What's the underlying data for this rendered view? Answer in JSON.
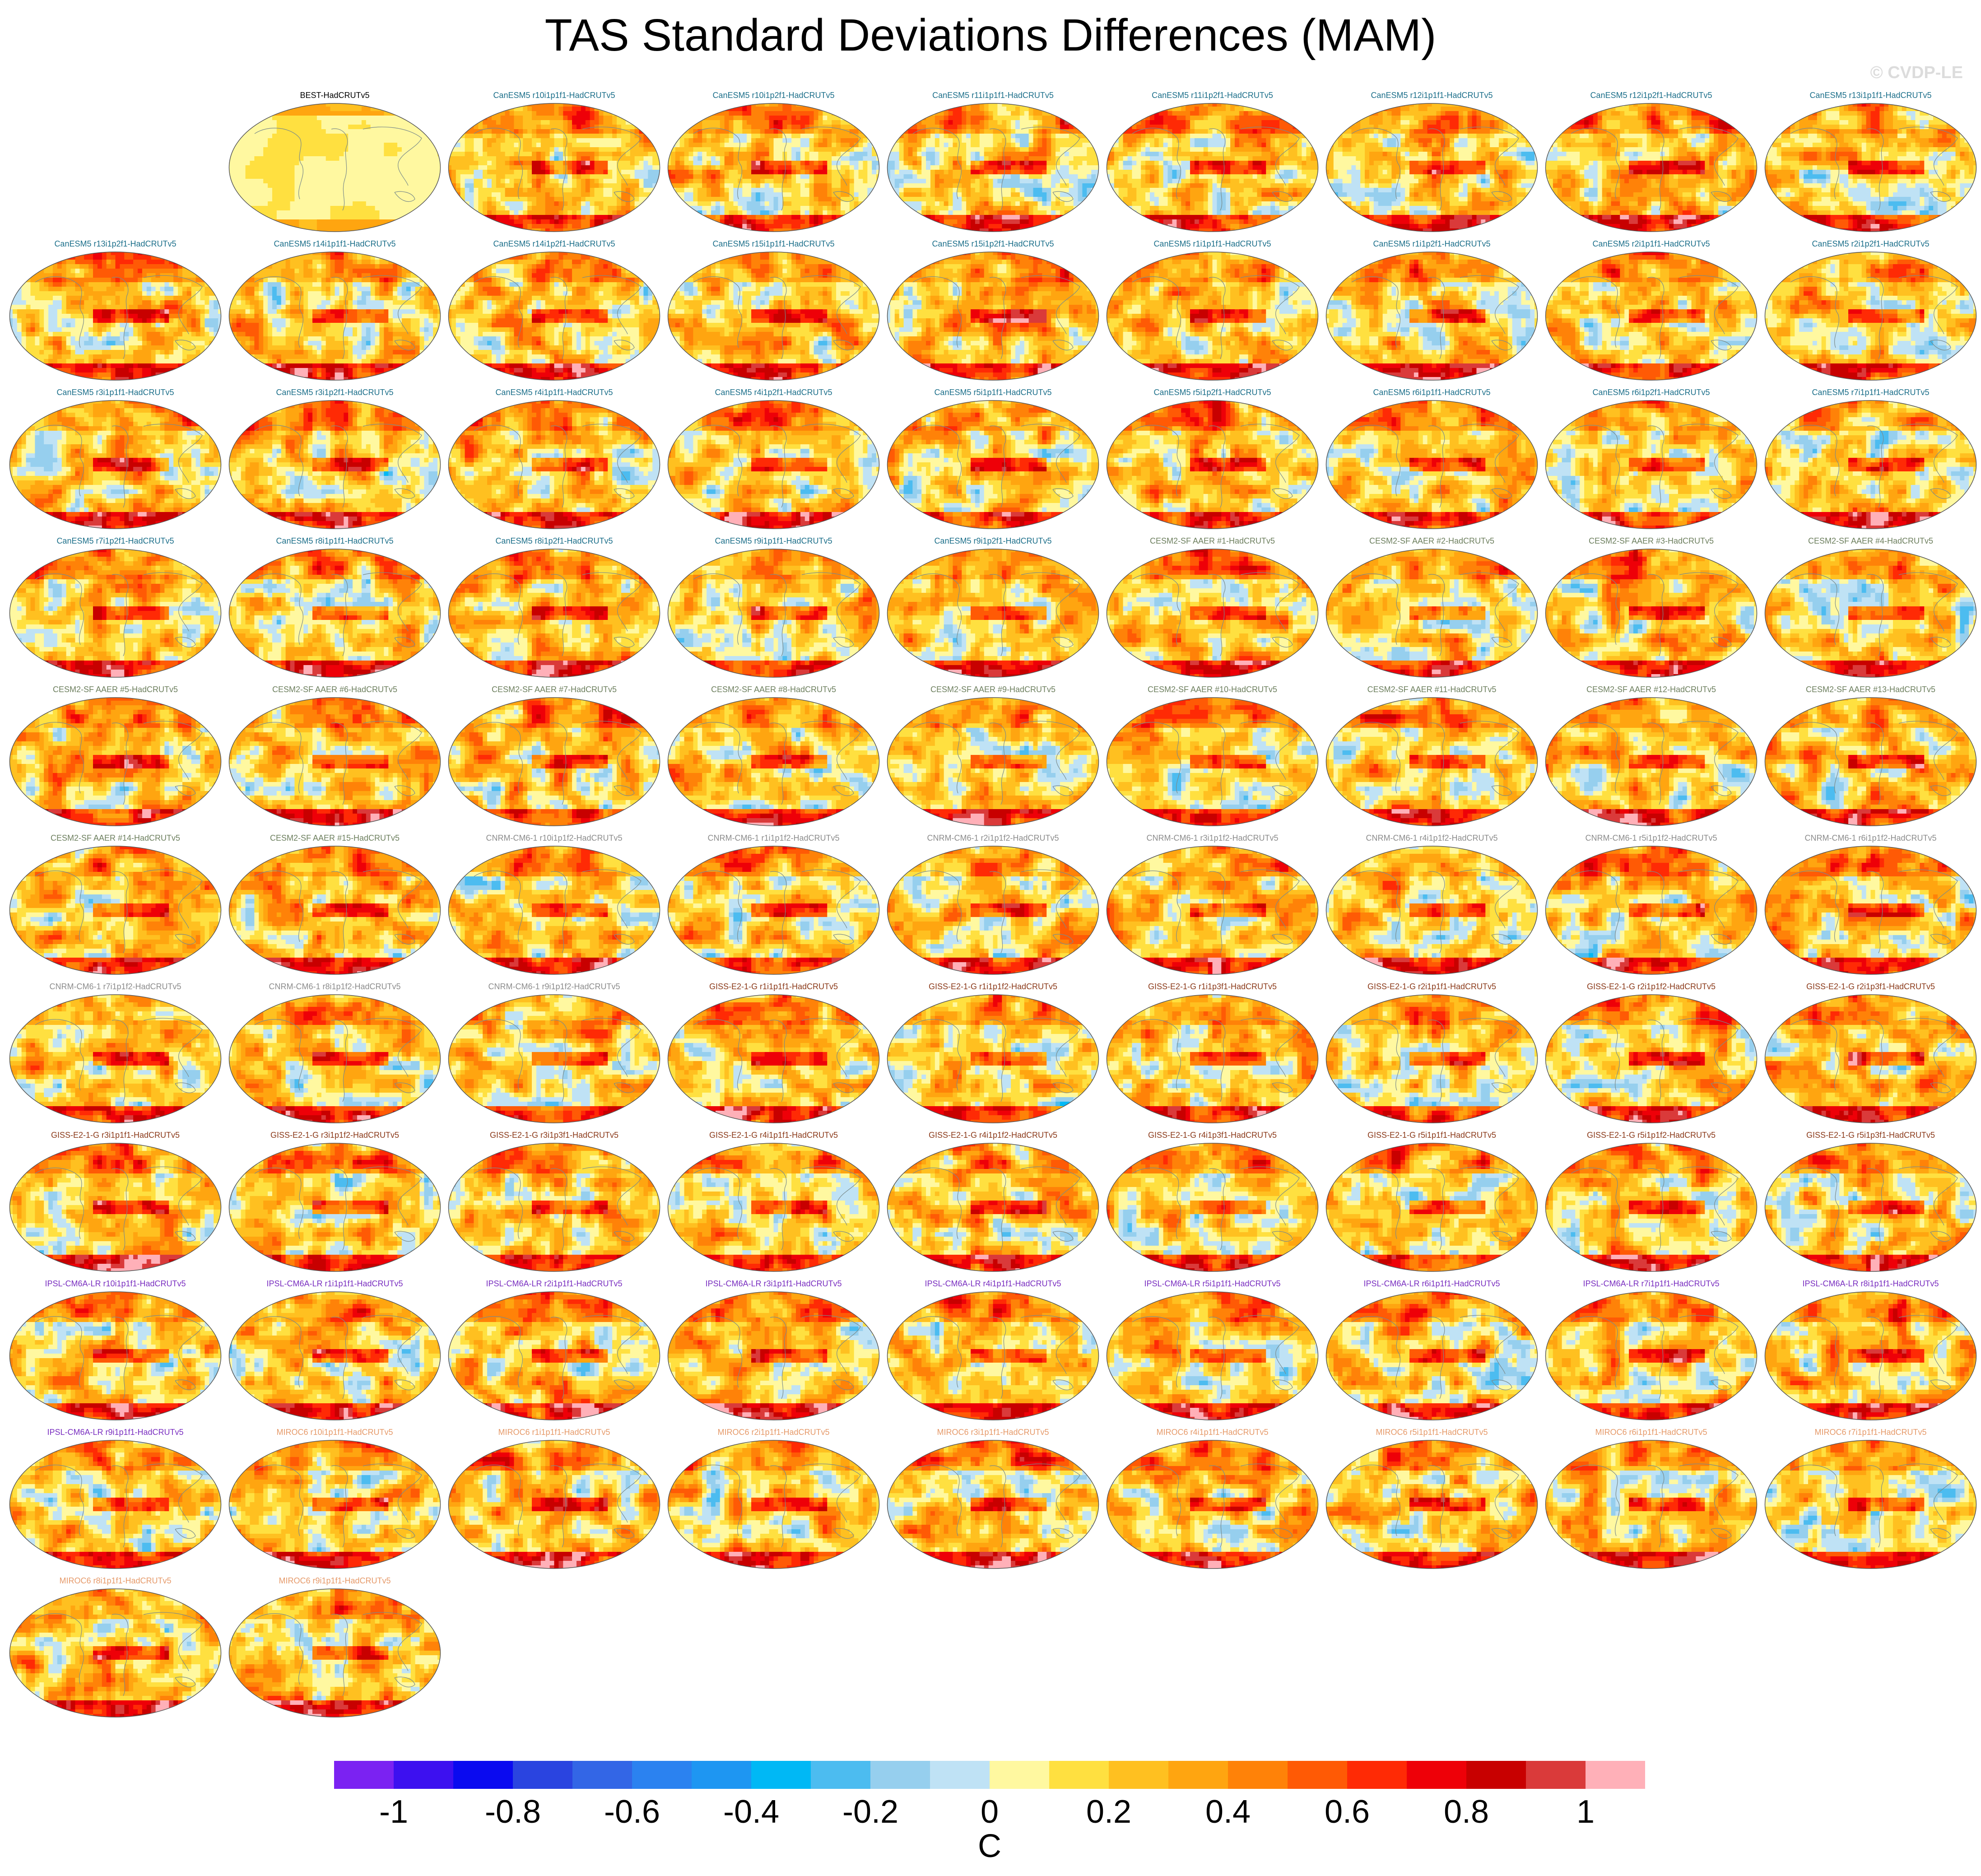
{
  "watermark": "© CVDP-LE",
  "chart_data": {
    "type": "heatmap",
    "title": "TAS Standard Deviations Differences (MAM)",
    "projection": "robinson",
    "units": "C",
    "colorbar": {
      "tick_labels": [
        "-1",
        "-0.8",
        "-0.6",
        "-0.4",
        "-0.2",
        "0",
        "0.2",
        "0.4",
        "0.6",
        "0.8",
        "1"
      ],
      "tick_values": [
        -1,
        -0.8,
        -0.6,
        -0.4,
        -0.2,
        0,
        0.2,
        0.4,
        0.6,
        0.8,
        1
      ],
      "levels": [
        -1.1,
        -1.0,
        -0.9,
        -0.8,
        -0.7,
        -0.6,
        -0.5,
        -0.4,
        -0.3,
        -0.2,
        -0.1,
        0,
        0.1,
        0.2,
        0.3,
        0.4,
        0.5,
        0.6,
        0.7,
        0.8,
        0.9,
        1.0,
        1.1
      ],
      "colors": [
        "#7b22f2",
        "#3d10f0",
        "#0a0af0",
        "#2a44e0",
        "#3366e6",
        "#2b82f0",
        "#1e96f2",
        "#00b8f5",
        "#4cbcf0",
        "#96cfee",
        "#bfe2f5",
        "#fff8a0",
        "#ffe040",
        "#ffc020",
        "#ffa510",
        "#ff8208",
        "#ff5a05",
        "#ff2a05",
        "#ee0008",
        "#c80000",
        "#da3a3a",
        "#ffb0b8"
      ]
    },
    "panel_colors": {
      "obs": "#000000",
      "CanESM5": "#1c6f8a",
      "CESM2-SF AAER": "#6d7f5e",
      "CNRM-CM6-1": "#8c8c8c",
      "GISS-E2-1-G": "#8b3a1a",
      "IPSL-CM6A-LR": "#7a2fc0",
      "MIROC6": "#e69a6a"
    },
    "panels": [
      {
        "title": "BEST-HadCRUTv5",
        "group": "obs"
      },
      {
        "title": "CanESM5 r10i1p1f1-HadCRUTv5",
        "group": "CanESM5"
      },
      {
        "title": "CanESM5 r10i1p2f1-HadCRUTv5",
        "group": "CanESM5"
      },
      {
        "title": "CanESM5 r11i1p1f1-HadCRUTv5",
        "group": "CanESM5"
      },
      {
        "title": "CanESM5 r11i1p2f1-HadCRUTv5",
        "group": "CanESM5"
      },
      {
        "title": "CanESM5 r12i1p1f1-HadCRUTv5",
        "group": "CanESM5"
      },
      {
        "title": "CanESM5 r12i1p2f1-HadCRUTv5",
        "group": "CanESM5"
      },
      {
        "title": "CanESM5 r13i1p1f1-HadCRUTv5",
        "group": "CanESM5"
      },
      {
        "title": "CanESM5 r13i1p2f1-HadCRUTv5",
        "group": "CanESM5"
      },
      {
        "title": "CanESM5 r14i1p1f1-HadCRUTv5",
        "group": "CanESM5"
      },
      {
        "title": "CanESM5 r14i1p2f1-HadCRUTv5",
        "group": "CanESM5"
      },
      {
        "title": "CanESM5 r15i1p1f1-HadCRUTv5",
        "group": "CanESM5"
      },
      {
        "title": "CanESM5 r15i1p2f1-HadCRUTv5",
        "group": "CanESM5"
      },
      {
        "title": "CanESM5 r1i1p1f1-HadCRUTv5",
        "group": "CanESM5"
      },
      {
        "title": "CanESM5 r1i1p2f1-HadCRUTv5",
        "group": "CanESM5"
      },
      {
        "title": "CanESM5 r2i1p1f1-HadCRUTv5",
        "group": "CanESM5"
      },
      {
        "title": "CanESM5 r2i1p2f1-HadCRUTv5",
        "group": "CanESM5"
      },
      {
        "title": "CanESM5 r3i1p1f1-HadCRUTv5",
        "group": "CanESM5"
      },
      {
        "title": "CanESM5 r3i1p2f1-HadCRUTv5",
        "group": "CanESM5"
      },
      {
        "title": "CanESM5 r4i1p1f1-HadCRUTv5",
        "group": "CanESM5"
      },
      {
        "title": "CanESM5 r4i1p2f1-HadCRUTv5",
        "group": "CanESM5"
      },
      {
        "title": "CanESM5 r5i1p1f1-HadCRUTv5",
        "group": "CanESM5"
      },
      {
        "title": "CanESM5 r5i1p2f1-HadCRUTv5",
        "group": "CanESM5"
      },
      {
        "title": "CanESM5 r6i1p1f1-HadCRUTv5",
        "group": "CanESM5"
      },
      {
        "title": "CanESM5 r6i1p2f1-HadCRUTv5",
        "group": "CanESM5"
      },
      {
        "title": "CanESM5 r7i1p1f1-HadCRUTv5",
        "group": "CanESM5"
      },
      {
        "title": "CanESM5 r7i1p2f1-HadCRUTv5",
        "group": "CanESM5"
      },
      {
        "title": "CanESM5 r8i1p1f1-HadCRUTv5",
        "group": "CanESM5"
      },
      {
        "title": "CanESM5 r8i1p2f1-HadCRUTv5",
        "group": "CanESM5"
      },
      {
        "title": "CanESM5 r9i1p1f1-HadCRUTv5",
        "group": "CanESM5"
      },
      {
        "title": "CanESM5 r9i1p2f1-HadCRUTv5",
        "group": "CanESM5"
      },
      {
        "title": "CESM2-SF AAER #1-HadCRUTv5",
        "group": "CESM2-SF AAER"
      },
      {
        "title": "CESM2-SF AAER #2-HadCRUTv5",
        "group": "CESM2-SF AAER"
      },
      {
        "title": "CESM2-SF AAER #3-HadCRUTv5",
        "group": "CESM2-SF AAER"
      },
      {
        "title": "CESM2-SF AAER #4-HadCRUTv5",
        "group": "CESM2-SF AAER"
      },
      {
        "title": "CESM2-SF AAER #5-HadCRUTv5",
        "group": "CESM2-SF AAER"
      },
      {
        "title": "CESM2-SF AAER #6-HadCRUTv5",
        "group": "CESM2-SF AAER"
      },
      {
        "title": "CESM2-SF AAER #7-HadCRUTv5",
        "group": "CESM2-SF AAER"
      },
      {
        "title": "CESM2-SF AAER #8-HadCRUTv5",
        "group": "CESM2-SF AAER"
      },
      {
        "title": "CESM2-SF AAER #9-HadCRUTv5",
        "group": "CESM2-SF AAER"
      },
      {
        "title": "CESM2-SF AAER #10-HadCRUTv5",
        "group": "CESM2-SF AAER"
      },
      {
        "title": "CESM2-SF AAER #11-HadCRUTv5",
        "group": "CESM2-SF AAER"
      },
      {
        "title": "CESM2-SF AAER #12-HadCRUTv5",
        "group": "CESM2-SF AAER"
      },
      {
        "title": "CESM2-SF AAER #13-HadCRUTv5",
        "group": "CESM2-SF AAER"
      },
      {
        "title": "CESM2-SF AAER #14-HadCRUTv5",
        "group": "CESM2-SF AAER"
      },
      {
        "title": "CESM2-SF AAER #15-HadCRUTv5",
        "group": "CESM2-SF AAER"
      },
      {
        "title": "CNRM-CM6-1 r10i1p1f2-HadCRUTv5",
        "group": "CNRM-CM6-1"
      },
      {
        "title": "CNRM-CM6-1 r1i1p1f2-HadCRUTv5",
        "group": "CNRM-CM6-1"
      },
      {
        "title": "CNRM-CM6-1 r2i1p1f2-HadCRUTv5",
        "group": "CNRM-CM6-1"
      },
      {
        "title": "CNRM-CM6-1 r3i1p1f2-HadCRUTv5",
        "group": "CNRM-CM6-1"
      },
      {
        "title": "CNRM-CM6-1 r4i1p1f2-HadCRUTv5",
        "group": "CNRM-CM6-1"
      },
      {
        "title": "CNRM-CM6-1 r5i1p1f2-HadCRUTv5",
        "group": "CNRM-CM6-1"
      },
      {
        "title": "CNRM-CM6-1 r6i1p1f2-HadCRUTv5",
        "group": "CNRM-CM6-1"
      },
      {
        "title": "CNRM-CM6-1 r7i1p1f2-HadCRUTv5",
        "group": "CNRM-CM6-1"
      },
      {
        "title": "CNRM-CM6-1 r8i1p1f2-HadCRUTv5",
        "group": "CNRM-CM6-1"
      },
      {
        "title": "CNRM-CM6-1 r9i1p1f2-HadCRUTv5",
        "group": "CNRM-CM6-1"
      },
      {
        "title": "GISS-E2-1-G r1i1p1f1-HadCRUTv5",
        "group": "GISS-E2-1-G"
      },
      {
        "title": "GISS-E2-1-G r1i1p1f2-HadCRUTv5",
        "group": "GISS-E2-1-G"
      },
      {
        "title": "GISS-E2-1-G r1i1p3f1-HadCRUTv5",
        "group": "GISS-E2-1-G"
      },
      {
        "title": "GISS-E2-1-G r2i1p1f1-HadCRUTv5",
        "group": "GISS-E2-1-G"
      },
      {
        "title": "GISS-E2-1-G r2i1p1f2-HadCRUTv5",
        "group": "GISS-E2-1-G"
      },
      {
        "title": "GISS-E2-1-G r2i1p3f1-HadCRUTv5",
        "group": "GISS-E2-1-G"
      },
      {
        "title": "GISS-E2-1-G r3i1p1f1-HadCRUTv5",
        "group": "GISS-E2-1-G"
      },
      {
        "title": "GISS-E2-1-G r3i1p1f2-HadCRUTv5",
        "group": "GISS-E2-1-G"
      },
      {
        "title": "GISS-E2-1-G r3i1p3f1-HadCRUTv5",
        "group": "GISS-E2-1-G"
      },
      {
        "title": "GISS-E2-1-G r4i1p1f1-HadCRUTv5",
        "group": "GISS-E2-1-G"
      },
      {
        "title": "GISS-E2-1-G r4i1p1f2-HadCRUTv5",
        "group": "GISS-E2-1-G"
      },
      {
        "title": "GISS-E2-1-G r4i1p3f1-HadCRUTv5",
        "group": "GISS-E2-1-G"
      },
      {
        "title": "GISS-E2-1-G r5i1p1f1-HadCRUTv5",
        "group": "GISS-E2-1-G"
      },
      {
        "title": "GISS-E2-1-G r5i1p1f2-HadCRUTv5",
        "group": "GISS-E2-1-G"
      },
      {
        "title": "GISS-E2-1-G r5i1p3f1-HadCRUTv5",
        "group": "GISS-E2-1-G"
      },
      {
        "title": "IPSL-CM6A-LR r10i1p1f1-HadCRUTv5",
        "group": "IPSL-CM6A-LR"
      },
      {
        "title": "IPSL-CM6A-LR r1i1p1f1-HadCRUTv5",
        "group": "IPSL-CM6A-LR"
      },
      {
        "title": "IPSL-CM6A-LR r2i1p1f1-HadCRUTv5",
        "group": "IPSL-CM6A-LR"
      },
      {
        "title": "IPSL-CM6A-LR r3i1p1f1-HadCRUTv5",
        "group": "IPSL-CM6A-LR"
      },
      {
        "title": "IPSL-CM6A-LR r4i1p1f1-HadCRUTv5",
        "group": "IPSL-CM6A-LR"
      },
      {
        "title": "IPSL-CM6A-LR r5i1p1f1-HadCRUTv5",
        "group": "IPSL-CM6A-LR"
      },
      {
        "title": "IPSL-CM6A-LR r6i1p1f1-HadCRUTv5",
        "group": "IPSL-CM6A-LR"
      },
      {
        "title": "IPSL-CM6A-LR r7i1p1f1-HadCRUTv5",
        "group": "IPSL-CM6A-LR"
      },
      {
        "title": "IPSL-CM6A-LR r8i1p1f1-HadCRUTv5",
        "group": "IPSL-CM6A-LR"
      },
      {
        "title": "IPSL-CM6A-LR r9i1p1f1-HadCRUTv5",
        "group": "IPSL-CM6A-LR"
      },
      {
        "title": "MIROC6 r10i1p1f1-HadCRUTv5",
        "group": "MIROC6"
      },
      {
        "title": "MIROC6 r1i1p1f1-HadCRUTv5",
        "group": "MIROC6"
      },
      {
        "title": "MIROC6 r2i1p1f1-HadCRUTv5",
        "group": "MIROC6"
      },
      {
        "title": "MIROC6 r3i1p1f1-HadCRUTv5",
        "group": "MIROC6"
      },
      {
        "title": "MIROC6 r4i1p1f1-HadCRUTv5",
        "group": "MIROC6"
      },
      {
        "title": "MIROC6 r5i1p1f1-HadCRUTv5",
        "group": "MIROC6"
      },
      {
        "title": "MIROC6 r6i1p1f1-HadCRUTv5",
        "group": "MIROC6"
      },
      {
        "title": "MIROC6 r7i1p1f1-HadCRUTv5",
        "group": "MIROC6"
      },
      {
        "title": "MIROC6 r8i1p1f1-HadCRUTv5",
        "group": "MIROC6"
      },
      {
        "title": "MIROC6 r9i1p1f1-HadCRUTv5",
        "group": "MIROC6"
      }
    ]
  }
}
